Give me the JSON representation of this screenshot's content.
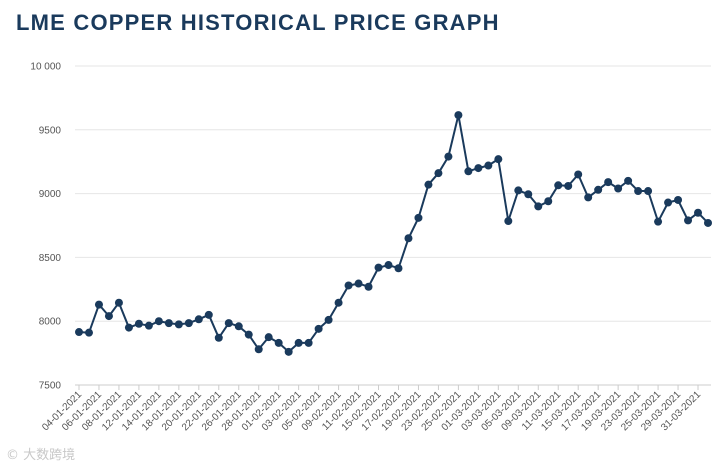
{
  "chart_data": {
    "type": "line",
    "title": "LME COPPER HISTORICAL PRICE GRAPH",
    "xlabel": "",
    "ylabel": "",
    "ylim": [
      7500,
      10000
    ],
    "yticks": [
      7500,
      8000,
      8500,
      9000,
      9500,
      10000
    ],
    "ytick_labels": [
      "7500",
      "8000",
      "8500",
      "9000",
      "9500",
      "10 000"
    ],
    "grid": true,
    "legend": "none",
    "series_color": "#1a3a5c",
    "x": [
      "04-01-2021",
      "05-01-2021",
      "06-01-2021",
      "07-01-2021",
      "08-01-2021",
      "11-01-2021",
      "12-01-2021",
      "13-01-2021",
      "14-01-2021",
      "15-01-2021",
      "18-01-2021",
      "19-01-2021",
      "20-01-2021",
      "21-01-2021",
      "22-01-2021",
      "25-01-2021",
      "26-01-2021",
      "27-01-2021",
      "28-01-2021",
      "29-01-2021",
      "01-02-2021",
      "02-02-2021",
      "03-02-2021",
      "04-02-2021",
      "05-02-2021",
      "08-02-2021",
      "09-02-2021",
      "10-02-2021",
      "11-02-2021",
      "12-02-2021",
      "15-02-2021",
      "16-02-2021",
      "17-02-2021",
      "18-02-2021",
      "19-02-2021",
      "22-02-2021",
      "23-02-2021",
      "24-02-2021",
      "25-02-2021",
      "26-02-2021",
      "01-03-2021",
      "02-03-2021",
      "03-03-2021",
      "04-03-2021",
      "05-03-2021",
      "08-03-2021",
      "09-03-2021",
      "10-03-2021",
      "11-03-2021",
      "12-03-2021",
      "15-03-2021",
      "16-03-2021",
      "17-03-2021",
      "18-03-2021",
      "19-03-2021",
      "22-03-2021",
      "23-03-2021",
      "24-03-2021",
      "25-03-2021",
      "26-03-2021",
      "29-03-2021",
      "30-03-2021",
      "31-03-2021",
      "01-04-2021"
    ],
    "xtick_labels": [
      "04-01-2021",
      "06-01-2021",
      "08-01-2021",
      "12-01-2021",
      "14-01-2021",
      "18-01-2021",
      "20-01-2021",
      "22-01-2021",
      "26-01-2021",
      "28-01-2021",
      "01-02-2021",
      "03-02-2021",
      "05-02-2021",
      "09-02-2021",
      "11-02-2021",
      "15-02-2021",
      "17-02-2021",
      "19-02-2021",
      "23-02-2021",
      "25-02-2021",
      "01-03-2021",
      "03-03-2021",
      "05-03-2021",
      "09-03-2021",
      "11-03-2021",
      "15-03-2021",
      "17-03-2021",
      "19-03-2021",
      "23-03-2021",
      "25-03-2021",
      "29-03-2021",
      "31-03-2021"
    ],
    "values": [
      7915,
      7910,
      8130,
      8040,
      8145,
      7950,
      7980,
      7965,
      8000,
      7985,
      7975,
      7985,
      8015,
      8050,
      7870,
      7985,
      7960,
      7895,
      7780,
      7875,
      7830,
      7760,
      7830,
      7830,
      7940,
      8010,
      8145,
      8280,
      8295,
      8270,
      8420,
      8440,
      8415,
      8650,
      8810,
      9070,
      9160,
      9290,
      9615,
      9175,
      9200,
      9220,
      9270,
      8785,
      9025,
      8995,
      8900,
      8940,
      9065,
      9060,
      9150,
      8970,
      9030,
      9090,
      9040,
      9100,
      9020,
      9020,
      8780,
      8930,
      8950,
      8790,
      8850,
      8770
    ]
  },
  "watermark": "© 大数跨境"
}
